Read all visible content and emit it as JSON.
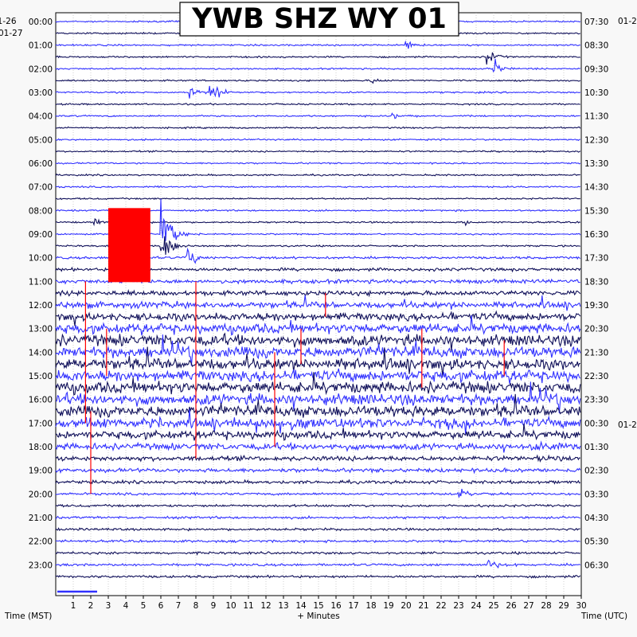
{
  "chart_data": {
    "type": "helicorder",
    "title": "YWB SHZ WY 01",
    "left_date_top": "01-26",
    "left_date_second": "01-27",
    "right_date_top": "01-2",
    "right_date_mid": "01-2",
    "xlabel_left": "Time (MST)",
    "xlabel_center": "+ Minutes",
    "xlabel_right": "Time (UTC)",
    "x_ticks": [
      "1",
      "2",
      "3",
      "4",
      "5",
      "6",
      "7",
      "8",
      "9",
      "10",
      "11",
      "12",
      "13",
      "14",
      "15",
      "16",
      "17",
      "18",
      "19",
      "20",
      "21",
      "22",
      "23",
      "24",
      "25",
      "26",
      "27",
      "28",
      "29",
      "30"
    ],
    "xlim": [
      0,
      30
    ],
    "lines_per_hour": 2,
    "left_hour_labels": [
      "00:00",
      "01:00",
      "02:00",
      "03:00",
      "04:00",
      "05:00",
      "06:00",
      "07:00",
      "08:00",
      "09:00",
      "10:00",
      "11:00",
      "12:00",
      "13:00",
      "14:00",
      "15:00",
      "16:00",
      "17:00",
      "18:00",
      "19:00",
      "20:00",
      "21:00",
      "22:00",
      "23:00"
    ],
    "right_hour_labels": [
      "07:30",
      "08:30",
      "09:30",
      "10:30",
      "11:30",
      "12:30",
      "13:30",
      "14:30",
      "15:30",
      "16:30",
      "17:30",
      "18:30",
      "19:30",
      "20:30",
      "21:30",
      "22:30",
      "23:30",
      "00:30",
      "01:30",
      "02:30",
      "03:30",
      "04:30",
      "05:30",
      "06:30"
    ],
    "trace_colors": [
      "#3030ff",
      "#10105a"
    ],
    "clip_color": "#ff0000",
    "noise_level": [
      1,
      1,
      1,
      1,
      1,
      1,
      1,
      1,
      1,
      1,
      1,
      1,
      1,
      1,
      1,
      1,
      1,
      1,
      1,
      1,
      1.5,
      2,
      2.5,
      3,
      4,
      5,
      6,
      7,
      7,
      7,
      7,
      7,
      7,
      7,
      6,
      5,
      4,
      3,
      2.5,
      2,
      1.5,
      1.5,
      1.5,
      1.5,
      1.5,
      1.5,
      1.5,
      1.5
    ],
    "events": [
      {
        "row": 2,
        "minute": 20.0,
        "amp": 5
      },
      {
        "row": 3,
        "minute": 24.6,
        "amp": 8
      },
      {
        "row": 4,
        "minute": 25.0,
        "amp": 9
      },
      {
        "row": 5,
        "minute": 18.0,
        "amp": 3
      },
      {
        "row": 6,
        "minute": 7.6,
        "amp": 8
      },
      {
        "row": 6,
        "minute": 8.8,
        "amp": 12
      },
      {
        "row": 8,
        "minute": 19.2,
        "amp": 4
      },
      {
        "row": 17,
        "minute": 2.2,
        "amp": 3
      },
      {
        "row": 17,
        "minute": 23.4,
        "amp": 3
      },
      {
        "row": 18,
        "minute": 6.0,
        "amp": 35
      },
      {
        "row": 19,
        "minute": 6.0,
        "amp": 20
      },
      {
        "row": 20,
        "minute": 7.5,
        "amp": 10
      },
      {
        "row": 34,
        "minute": 1.5,
        "amp": 6
      },
      {
        "row": 34,
        "minute": 10.2,
        "amp": 6
      },
      {
        "row": 34,
        "minute": 13.5,
        "amp": 8
      },
      {
        "row": 34,
        "minute": 15.3,
        "amp": 6
      },
      {
        "row": 36,
        "minute": 27.2,
        "amp": 4
      },
      {
        "row": 37,
        "minute": 27.4,
        "amp": 4
      },
      {
        "row": 38,
        "minute": 29.7,
        "amp": 7
      },
      {
        "row": 40,
        "minute": 23.0,
        "amp": 7
      },
      {
        "row": 46,
        "minute": 24.7,
        "amp": 6
      }
    ],
    "clipped_block": {
      "row_start": 16,
      "row_end": 22,
      "minute_start": 3.0,
      "minute_end": 5.4
    },
    "red_spikes": [
      {
        "minute": 1.7,
        "row_start": 22,
        "row_end": 34
      },
      {
        "minute": 2.9,
        "row_start": 26,
        "row_end": 30
      },
      {
        "minute": 8.0,
        "row_start": 22,
        "row_end": 37
      },
      {
        "minute": 14.0,
        "row_start": 26,
        "row_end": 29
      },
      {
        "minute": 12.5,
        "row_start": 28,
        "row_end": 36
      },
      {
        "minute": 20.9,
        "row_start": 26,
        "row_end": 31
      },
      {
        "minute": 25.6,
        "row_start": 27,
        "row_end": 30
      },
      {
        "minute": 2.0,
        "row_start": 33,
        "row_end": 40
      },
      {
        "minute": 15.4,
        "row_start": 23,
        "row_end": 25
      }
    ],
    "grid": true
  }
}
